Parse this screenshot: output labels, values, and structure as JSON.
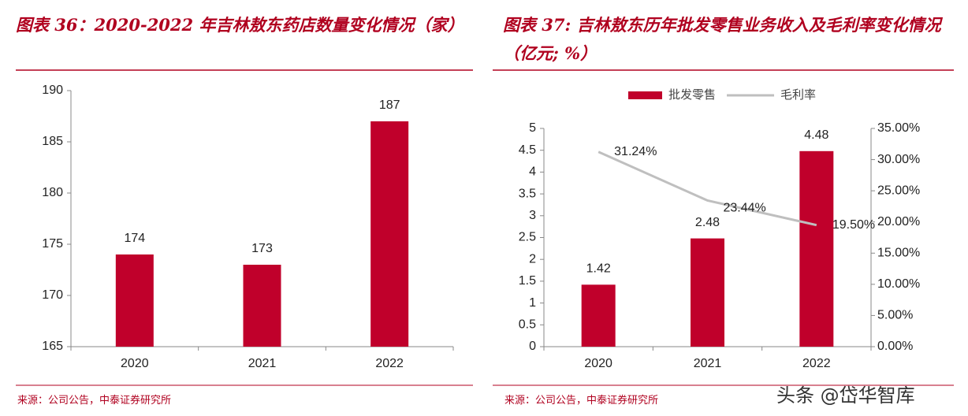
{
  "chart_data": [
    {
      "type": "bar",
      "title": "图表 36：2020-2022 年吉林敖东药店数量变化情况（家）",
      "categories": [
        "2020",
        "2021",
        "2022"
      ],
      "values": [
        174,
        173,
        187
      ],
      "color": "#c0002b",
      "ylim": [
        165,
        190
      ],
      "yticks": [
        165,
        170,
        175,
        180,
        185,
        190
      ],
      "source": "来源：公司公告，中泰证券研究所"
    },
    {
      "type": "combo",
      "title": "图表 37: 吉林敖东历年批发零售业务收入及毛利率变化情况（亿元; %）",
      "categories": [
        "2020",
        "2021",
        "2022"
      ],
      "series": [
        {
          "name": "批发零售",
          "type": "bar",
          "color": "#c0002b",
          "values": [
            1.42,
            2.48,
            4.48
          ]
        },
        {
          "name": "毛利率",
          "type": "line",
          "axis": "y2",
          "color": "#bfbfbf",
          "values": [
            31.24,
            23.44,
            19.5
          ],
          "value_labels": [
            "31.24%",
            "23.44%",
            "19.50%"
          ]
        }
      ],
      "ylim": [
        0,
        5
      ],
      "yticks": [
        0,
        0.5,
        1,
        1.5,
        2,
        2.5,
        3,
        3.5,
        4,
        4.5,
        5
      ],
      "y2lim": [
        0,
        35
      ],
      "y2ticks": [
        {
          "value": 0,
          "label": "0.00%"
        },
        {
          "value": 5,
          "label": "5.00%"
        },
        {
          "value": 10,
          "label": "10.00%"
        },
        {
          "value": 15,
          "label": "15.00%"
        },
        {
          "value": 20,
          "label": "20.00%"
        },
        {
          "value": 25,
          "label": "25.00%"
        },
        {
          "value": 30,
          "label": "30.00%"
        },
        {
          "value": 35,
          "label": "35.00%"
        }
      ],
      "legend": "top",
      "source": "来源：公司公告，中泰证券研究所"
    }
  ],
  "watermark": "头条 @岱华智库"
}
